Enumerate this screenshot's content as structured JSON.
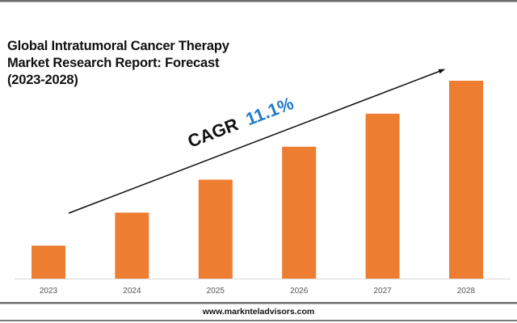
{
  "chart_data": {
    "type": "bar",
    "title": "Global Intratumoral Cancer Therapy Market Research Report: Forecast (2023-2028)",
    "categories": [
      "2023",
      "2024",
      "2025",
      "2026",
      "2027",
      "2028"
    ],
    "values": [
      1,
      2,
      3,
      4,
      5,
      6
    ],
    "xlabel": "",
    "ylabel": "",
    "ylim": [
      0,
      6
    ],
    "grid": false,
    "annotation": {
      "prefix": "CAGR",
      "value": "11.1%"
    },
    "colors": {
      "bar": "#ed7d31",
      "cagr_value": "#1f7bc9",
      "text": "#111111"
    }
  },
  "header": {
    "title_lines": [
      "Global Intratumoral Cancer Therapy",
      "Market Research Report: Forecast",
      "(2023-2028)"
    ]
  },
  "footer": {
    "website": "www.marknteladvisors.com"
  }
}
